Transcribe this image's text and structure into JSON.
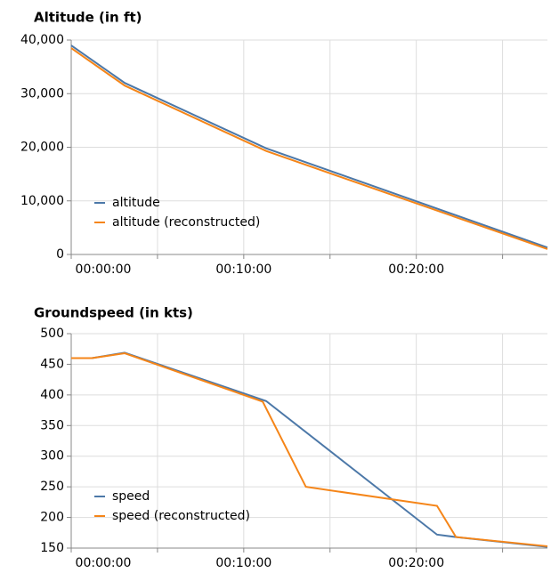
{
  "chart_data": [
    {
      "type": "line",
      "title": "Altitude (in ft)",
      "x": [
        0,
        3.1,
        11.3,
        27.6
      ],
      "series": [
        {
          "name": "altitude",
          "color": "#4c78a8",
          "x": [
            0,
            3.1,
            11.3,
            27.6
          ],
          "values": [
            39000,
            32000,
            19800,
            1300
          ]
        },
        {
          "name": "altitude (reconstructed)",
          "color": "#f58518",
          "x": [
            0,
            3.1,
            11.3,
            27.6
          ],
          "values": [
            38500,
            31500,
            19300,
            1000
          ]
        }
      ],
      "xlim": [
        0,
        27.6
      ],
      "xticks": [
        {
          "value": 0,
          "label": "00:00:00"
        },
        {
          "value": 10,
          "label": "00:10:00"
        },
        {
          "value": 20,
          "label": "00:20:00"
        }
      ],
      "x_minor_ticks": [
        5,
        15,
        25
      ],
      "ylim": [
        0,
        40000
      ],
      "yticks": [
        {
          "value": 0,
          "label": "0"
        },
        {
          "value": 10000,
          "label": "10,000"
        },
        {
          "value": 20000,
          "label": "20,000"
        },
        {
          "value": 30000,
          "label": "30,000"
        },
        {
          "value": 40000,
          "label": "40,000"
        }
      ],
      "grid": true,
      "legend": "bottom-left"
    },
    {
      "type": "line",
      "title": "Groundspeed (in kts)",
      "series": [
        {
          "name": "speed",
          "color": "#4c78a8",
          "x": [
            0,
            1.2,
            3.1,
            11.3,
            21.2,
            22.3,
            27.6
          ],
          "values": [
            460,
            460,
            469,
            390,
            172,
            168,
            152
          ]
        },
        {
          "name": "speed (reconstructed)",
          "color": "#f58518",
          "x": [
            0,
            1.2,
            3.1,
            11.1,
            13.6,
            21.2,
            22.3,
            27.6
          ],
          "values": [
            460,
            460,
            468,
            389,
            250,
            219,
            168,
            153
          ]
        }
      ],
      "xlim": [
        0,
        27.6
      ],
      "xticks": [
        {
          "value": 0,
          "label": "00:00:00"
        },
        {
          "value": 10,
          "label": "00:10:00"
        },
        {
          "value": 20,
          "label": "00:20:00"
        }
      ],
      "x_minor_ticks": [
        5,
        15,
        25
      ],
      "ylim": [
        150,
        500
      ],
      "yticks": [
        150,
        200,
        250,
        300,
        350,
        400,
        450,
        500
      ],
      "grid": true,
      "legend": "bottom-left"
    }
  ]
}
